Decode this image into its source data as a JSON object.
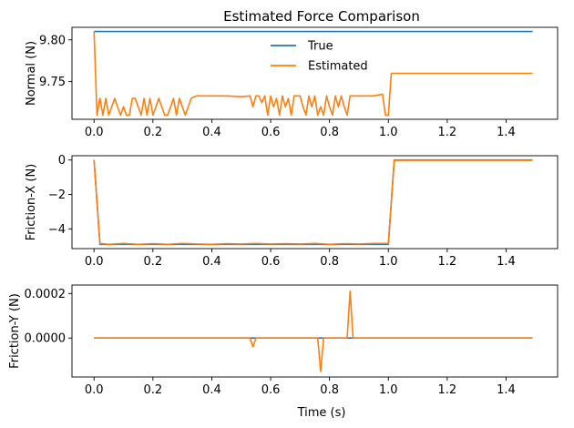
{
  "figure": {
    "title": "Estimated Force Comparison",
    "xlabel": "Time (s)"
  },
  "legend": {
    "placement": "upper-center",
    "entries": [
      {
        "label": "True",
        "color": "#1f77b4"
      },
      {
        "label": "Estimated",
        "color": "#ff7f0e"
      }
    ]
  },
  "chart_data": [
    {
      "type": "line",
      "ylabel": "Normal (N)",
      "xlim": [
        -0.075,
        1.575
      ],
      "ylim": [
        9.705,
        9.815
      ],
      "xticks": [
        0.0,
        0.2,
        0.4,
        0.6,
        0.8,
        1.0,
        1.2,
        1.4
      ],
      "xtick_labels": [
        "0.0",
        "0.2",
        "0.4",
        "0.6",
        "0.8",
        "1.0",
        "1.2",
        "1.4"
      ],
      "yticks": [
        9.75,
        9.8
      ],
      "ytick_labels": [
        "9.75",
        "9.80"
      ],
      "series": [
        {
          "name": "True",
          "color": "#1f77b4",
          "x": [
            0.0,
            1.49
          ],
          "y": [
            9.81,
            9.81
          ]
        },
        {
          "name": "Estimated",
          "color": "#ff7f0e",
          "x": [
            0.0,
            0.01,
            0.02,
            0.03,
            0.04,
            0.05,
            0.06,
            0.07,
            0.08,
            0.09,
            0.1,
            0.11,
            0.12,
            0.13,
            0.14,
            0.15,
            0.16,
            0.17,
            0.18,
            0.19,
            0.2,
            0.21,
            0.22,
            0.23,
            0.24,
            0.25,
            0.26,
            0.27,
            0.28,
            0.29,
            0.3,
            0.31,
            0.32,
            0.33,
            0.34,
            0.35,
            0.4,
            0.45,
            0.5,
            0.53,
            0.54,
            0.55,
            0.56,
            0.57,
            0.58,
            0.59,
            0.6,
            0.61,
            0.62,
            0.63,
            0.64,
            0.65,
            0.66,
            0.67,
            0.68,
            0.69,
            0.7,
            0.71,
            0.72,
            0.73,
            0.74,
            0.75,
            0.76,
            0.77,
            0.78,
            0.79,
            0.8,
            0.81,
            0.82,
            0.83,
            0.84,
            0.85,
            0.86,
            0.87,
            0.88,
            0.89,
            0.9,
            0.95,
            0.98,
            0.99,
            1.0,
            1.01,
            1.49
          ],
          "y": [
            9.81,
            9.71,
            9.73,
            9.71,
            9.73,
            9.71,
            9.72,
            9.73,
            9.72,
            9.71,
            9.72,
            9.71,
            9.71,
            9.73,
            9.73,
            9.72,
            9.71,
            9.73,
            9.71,
            9.73,
            9.71,
            9.72,
            9.73,
            9.72,
            9.71,
            9.71,
            9.72,
            9.73,
            9.71,
            9.73,
            9.72,
            9.71,
            9.72,
            9.73,
            9.732,
            9.733,
            9.733,
            9.733,
            9.732,
            9.733,
            9.72,
            9.733,
            9.733,
            9.725,
            9.733,
            9.71,
            9.733,
            9.72,
            9.73,
            9.71,
            9.733,
            9.72,
            9.73,
            9.71,
            9.733,
            9.733,
            9.733,
            9.72,
            9.71,
            9.733,
            9.72,
            9.733,
            9.71,
            9.72,
            9.71,
            9.733,
            9.72,
            9.71,
            9.733,
            9.72,
            9.733,
            9.72,
            9.71,
            9.733,
            9.733,
            9.733,
            9.733,
            9.733,
            9.735,
            9.71,
            9.71,
            9.76,
            9.76
          ]
        }
      ]
    },
    {
      "type": "line",
      "ylabel": "Friction-X (N)",
      "xlim": [
        -0.075,
        1.575
      ],
      "ylim": [
        -5.15,
        0.25
      ],
      "xticks": [
        0.0,
        0.2,
        0.4,
        0.6,
        0.8,
        1.0,
        1.2,
        1.4
      ],
      "xtick_labels": [
        "0.0",
        "0.2",
        "0.4",
        "0.6",
        "0.8",
        "1.0",
        "1.2",
        "1.4"
      ],
      "yticks": [
        -4,
        -2,
        0
      ],
      "ytick_labels": [
        "−4",
        "−2",
        "0"
      ],
      "series": [
        {
          "name": "True",
          "color": "#1f77b4",
          "x": [
            0.0,
            0.02,
            1.0,
            1.02,
            1.49
          ],
          "y": [
            0.0,
            -4.9,
            -4.9,
            0.0,
            0.0
          ]
        },
        {
          "name": "Estimated",
          "color": "#ff7f0e",
          "x": [
            0.0,
            0.02,
            0.05,
            0.1,
            0.15,
            0.2,
            0.25,
            0.3,
            0.35,
            0.4,
            0.45,
            0.5,
            0.55,
            0.6,
            0.65,
            0.7,
            0.75,
            0.8,
            0.85,
            0.9,
            0.95,
            1.0,
            1.02,
            1.49
          ],
          "y": [
            0.0,
            -4.85,
            -4.9,
            -4.85,
            -4.9,
            -4.86,
            -4.9,
            -4.85,
            -4.88,
            -4.9,
            -4.86,
            -4.88,
            -4.85,
            -4.88,
            -4.86,
            -4.88,
            -4.85,
            -4.9,
            -4.86,
            -4.88,
            -4.85,
            -4.85,
            -0.02,
            -0.02
          ]
        }
      ]
    },
    {
      "type": "line",
      "ylabel": "Friction-Y (N)",
      "xlim": [
        -0.075,
        1.575
      ],
      "ylim": [
        -0.000175,
        0.000238
      ],
      "xticks": [
        0.0,
        0.2,
        0.4,
        0.6,
        0.8,
        1.0,
        1.2,
        1.4
      ],
      "xtick_labels": [
        "0.0",
        "0.2",
        "0.4",
        "0.6",
        "0.8",
        "1.0",
        "1.2",
        "1.4"
      ],
      "yticks": [
        0.0,
        0.0002
      ],
      "ytick_labels": [
        "0.0000",
        "0.0002"
      ],
      "series": [
        {
          "name": "True",
          "color": "#1f77b4",
          "x": [
            0.0,
            1.49
          ],
          "y": [
            0.0,
            0.0
          ]
        },
        {
          "name": "Estimated",
          "color": "#ff7f0e",
          "x": [
            0.0,
            0.53,
            0.54,
            0.55,
            0.76,
            0.77,
            0.78,
            0.86,
            0.87,
            0.88,
            1.49
          ],
          "y": [
            0.0,
            0.0,
            -4e-05,
            0.0,
            0.0,
            -0.00015,
            0.0,
            0.0,
            0.00021,
            0.0,
            0.0
          ]
        }
      ]
    }
  ]
}
